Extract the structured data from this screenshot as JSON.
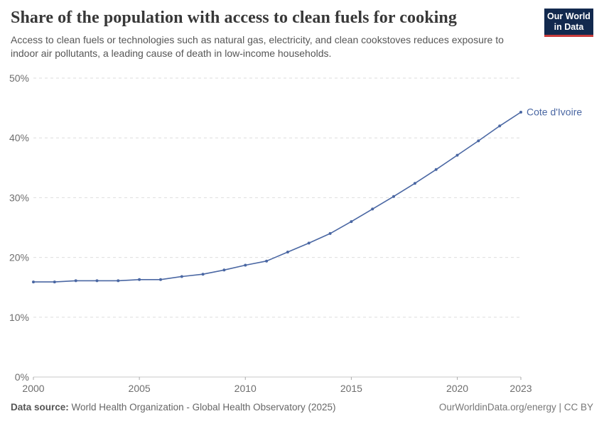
{
  "header": {
    "title": "Share of the population with access to clean fuels for cooking",
    "subtitle": "Access to clean fuels or technologies such as natural gas, electricity, and clean cookstoves reduces exposure to indoor air pollutants, a leading cause of death in low-income households.",
    "logo": {
      "line1": "Our World",
      "line2": "in Data",
      "bg_color": "#12294e",
      "accent_color": "#c93c3c"
    }
  },
  "chart_data": {
    "type": "line",
    "title": "Share of the population with access to clean fuels for cooking",
    "xlabel": "",
    "ylabel": "",
    "xlim": [
      2000,
      2023
    ],
    "ylim": [
      0,
      50
    ],
    "x_ticks": [
      2000,
      2005,
      2010,
      2015,
      2020,
      2023
    ],
    "y_ticks": [
      0,
      10,
      20,
      30,
      40,
      50
    ],
    "y_tick_suffix": "%",
    "grid": "horizontal-dashed",
    "legend_position": "end-of-line-label",
    "colors": {
      "line": "#4a67a3",
      "gridline": "#dedede",
      "axis": "#c8c8c8",
      "tick_text": "#6e6e6e"
    },
    "series": [
      {
        "name": "Cote d'Ivoire",
        "x": [
          2000,
          2001,
          2002,
          2003,
          2004,
          2005,
          2006,
          2007,
          2008,
          2009,
          2010,
          2011,
          2012,
          2013,
          2014,
          2015,
          2016,
          2017,
          2018,
          2019,
          2020,
          2021,
          2022,
          2023
        ],
        "values": [
          15.9,
          15.9,
          16.1,
          16.1,
          16.1,
          16.3,
          16.3,
          16.8,
          17.2,
          17.9,
          18.7,
          19.4,
          20.9,
          22.4,
          24.0,
          26.0,
          28.1,
          30.2,
          32.4,
          34.7,
          37.1,
          39.5,
          42.0,
          44.3
        ]
      }
    ]
  },
  "footer": {
    "datasource_label": "Data source:",
    "datasource_text": "World Health Organization - Global Health Observatory (2025)",
    "attribution": "OurWorldinData.org/energy | CC BY"
  }
}
